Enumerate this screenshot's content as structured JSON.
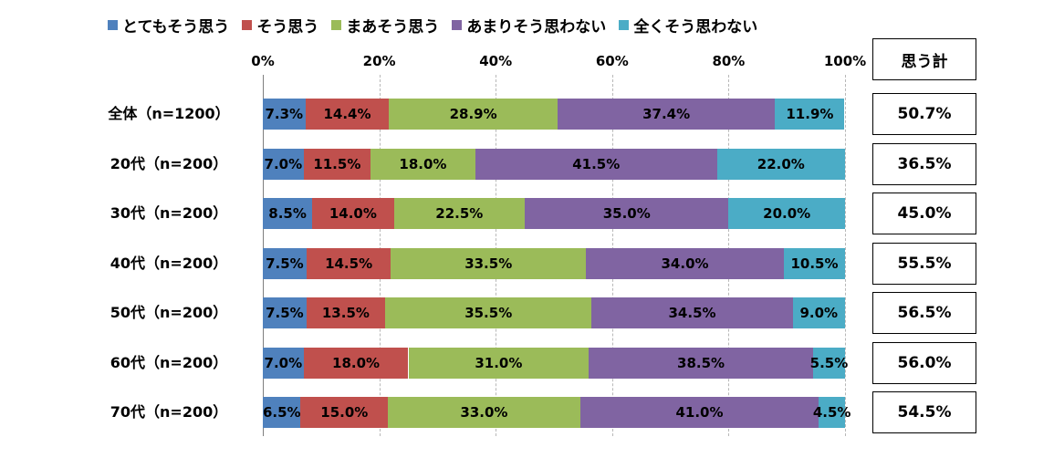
{
  "chart_data": {
    "type": "bar",
    "orientation": "horizontal",
    "stacked": true,
    "percent": true,
    "legend_position": "top",
    "grid": true,
    "xlim": [
      0,
      100
    ],
    "x_ticks": [
      "0%",
      "20%",
      "40%",
      "60%",
      "80%",
      "100%"
    ],
    "categories": [
      "全体（n=1200）",
      "20代（n=200）",
      "30代（n=200）",
      "40代（n=200）",
      "50代（n=200）",
      "60代（n=200）",
      "70代（n=200）"
    ],
    "series": [
      {
        "name": "とてもそう思う",
        "color": "#4f81bd",
        "values": [
          7.3,
          7.0,
          8.5,
          7.5,
          7.5,
          7.0,
          6.5
        ],
        "labels": [
          "7.3%",
          "7.0%",
          "8.5%",
          "7.5%",
          "7.5%",
          "7.0%",
          "6.5%"
        ]
      },
      {
        "name": "そう思う",
        "color": "#c0504d",
        "values": [
          14.4,
          11.5,
          14.0,
          14.5,
          13.5,
          18.0,
          15.0
        ],
        "labels": [
          "14.4%",
          "11.5%",
          "14.0%",
          "14.5%",
          "13.5%",
          "18.0%",
          "15.0%"
        ]
      },
      {
        "name": "まあそう思う",
        "color": "#9bbb59",
        "values": [
          28.9,
          18.0,
          22.5,
          33.5,
          35.5,
          31.0,
          33.0
        ],
        "labels": [
          "28.9%",
          "18.0%",
          "22.5%",
          "33.5%",
          "35.5%",
          "31.0%",
          "33.0%"
        ]
      },
      {
        "name": "あまりそう思わない",
        "color": "#8064a2",
        "values": [
          37.4,
          41.5,
          35.0,
          34.0,
          34.5,
          38.5,
          41.0
        ],
        "labels": [
          "37.4%",
          "41.5%",
          "35.0%",
          "34.0%",
          "34.5%",
          "38.5%",
          "41.0%"
        ]
      },
      {
        "name": "全くそう思わない",
        "color": "#4bacc6",
        "values": [
          11.9,
          22.0,
          20.0,
          10.5,
          9.0,
          5.5,
          4.5
        ],
        "labels": [
          "11.9%",
          "22.0%",
          "20.0%",
          "10.5%",
          "9.0%",
          "5.5%",
          "4.5%"
        ]
      }
    ],
    "summary": {
      "header": "思う計",
      "values": [
        "50.7%",
        "36.5%",
        "45.0%",
        "55.5%",
        "56.5%",
        "56.0%",
        "54.5%"
      ]
    }
  }
}
